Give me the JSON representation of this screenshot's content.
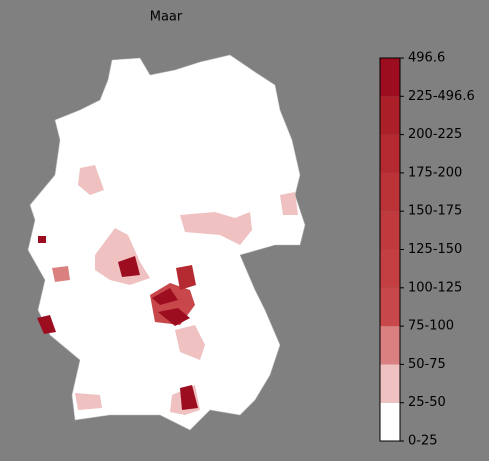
{
  "title": "Maar",
  "legend": {
    "labels": [
      "0-25",
      "25-50",
      "50-75",
      "75-100",
      "100-125",
      "125-150",
      "150-175",
      "175-200",
      "200-225",
      "225-496.6",
      "496.6"
    ],
    "colors": [
      "#ffffff",
      "#efc1c1",
      "#da8080",
      "#c8474a",
      "#c43f42",
      "#c03a3d",
      "#bb3337",
      "#b42a30",
      "#ab1f28",
      "#9c0d20"
    ]
  }
}
